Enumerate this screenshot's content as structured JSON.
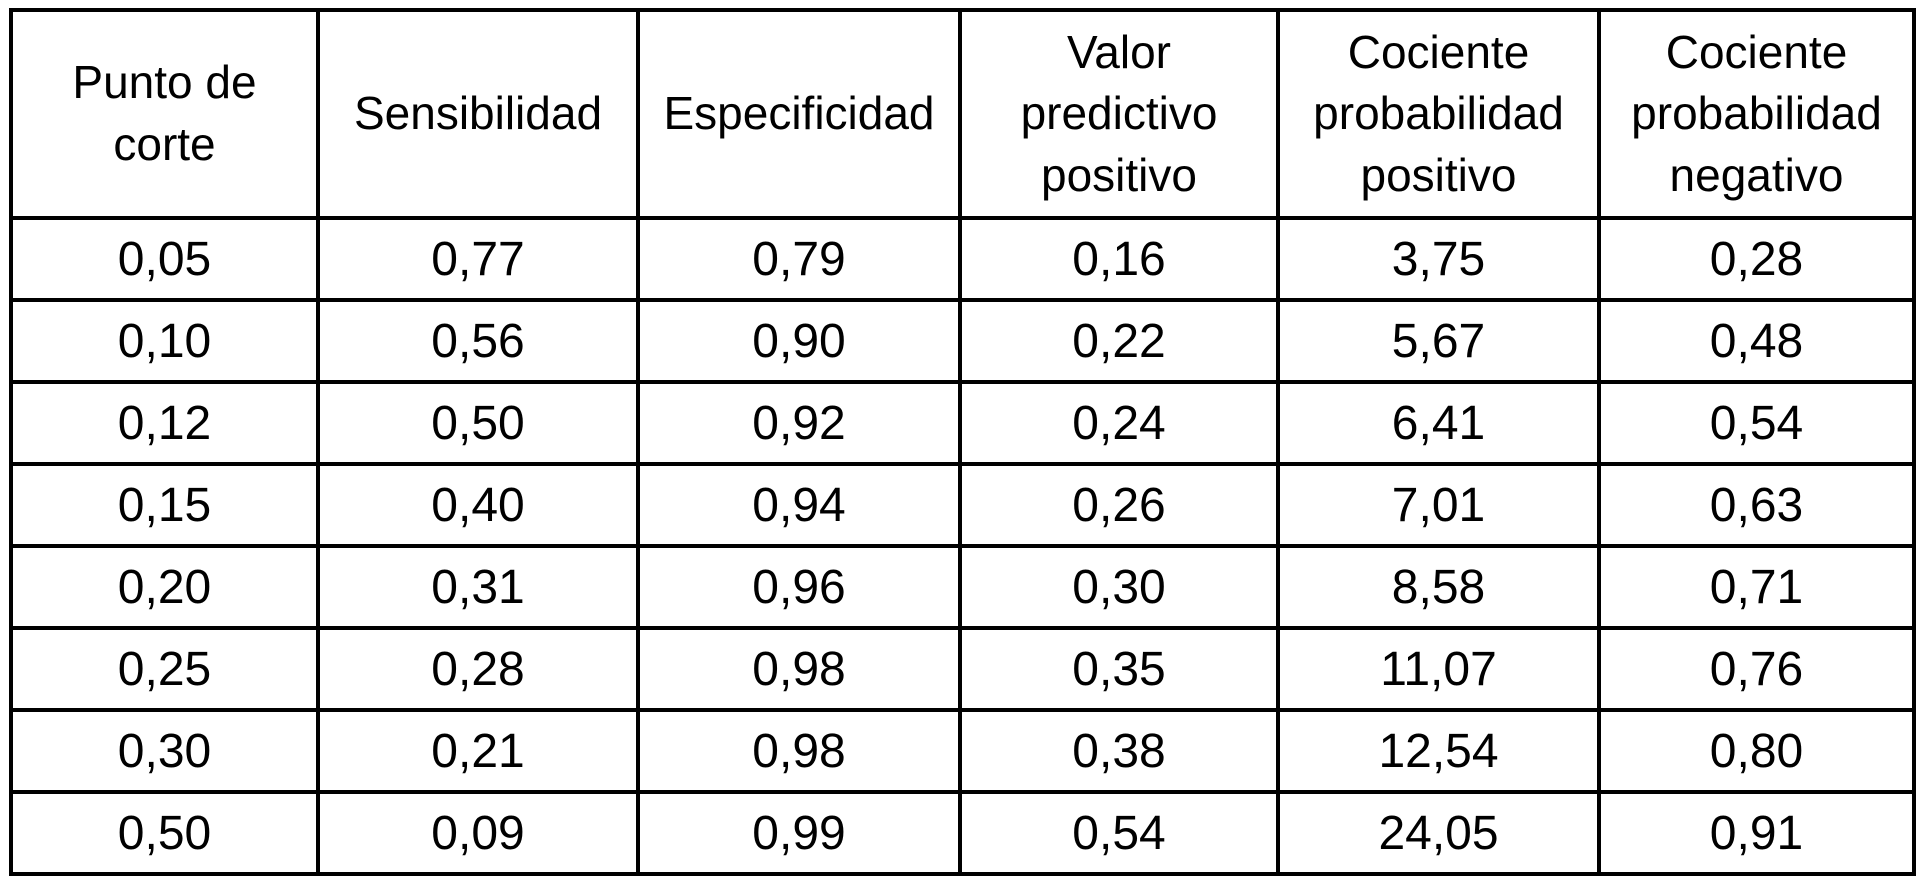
{
  "page": {
    "background_color": "#ffffff",
    "border_color": "#000000",
    "text_color": "#000000"
  },
  "table": {
    "columns": [
      {
        "id": "punto_de_corte",
        "label": "Punto de\ncorte"
      },
      {
        "id": "sensibilidad",
        "label": "Sensibilidad"
      },
      {
        "id": "especificidad",
        "label": "Especificidad"
      },
      {
        "id": "valor_predictivo_positivo",
        "label": "Valor\npredictivo\npositivo"
      },
      {
        "id": "cociente_probabilidad_positivo",
        "label": "Cociente\nprobabilidad\npositivo"
      },
      {
        "id": "cociente_probabilidad_negativo",
        "label": "Cociente\nprobabilidad\nnegativo"
      }
    ],
    "rows": [
      [
        "0,05",
        "0,77",
        "0,79",
        "0,16",
        "3,75",
        "0,28"
      ],
      [
        "0,10",
        "0,56",
        "0,90",
        "0,22",
        "5,67",
        "0,48"
      ],
      [
        "0,12",
        "0,50",
        "0,92",
        "0,24",
        "6,41",
        "0,54"
      ],
      [
        "0,15",
        "0,40",
        "0,94",
        "0,26",
        "7,01",
        "0,63"
      ],
      [
        "0,20",
        "0,31",
        "0,96",
        "0,30",
        "8,58",
        "0,71"
      ],
      [
        "0,25",
        "0,28",
        "0,98",
        "0,35",
        "11,07",
        "0,76"
      ],
      [
        "0,30",
        "0,21",
        "0,98",
        "0,38",
        "12,54",
        "0,80"
      ],
      [
        "0,50",
        "0,09",
        "0,99",
        "0,54",
        "24,05",
        "0,91"
      ]
    ]
  },
  "chart_data": {
    "type": "table",
    "columns": [
      "Punto de corte",
      "Sensibilidad",
      "Especificidad",
      "Valor predictivo positivo",
      "Cociente probabilidad positivo",
      "Cociente probabilidad negativo"
    ],
    "decimal_separator": ",",
    "rows_numeric": [
      [
        0.05,
        0.77,
        0.79,
        0.16,
        3.75,
        0.28
      ],
      [
        0.1,
        0.56,
        0.9,
        0.22,
        5.67,
        0.48
      ],
      [
        0.12,
        0.5,
        0.92,
        0.24,
        6.41,
        0.54
      ],
      [
        0.15,
        0.4,
        0.94,
        0.26,
        7.01,
        0.63
      ],
      [
        0.2,
        0.31,
        0.96,
        0.3,
        8.58,
        0.71
      ],
      [
        0.25,
        0.28,
        0.98,
        0.35,
        11.07,
        0.76
      ],
      [
        0.3,
        0.21,
        0.98,
        0.38,
        12.54,
        0.8
      ],
      [
        0.5,
        0.09,
        0.99,
        0.54,
        24.05,
        0.91
      ]
    ]
  }
}
